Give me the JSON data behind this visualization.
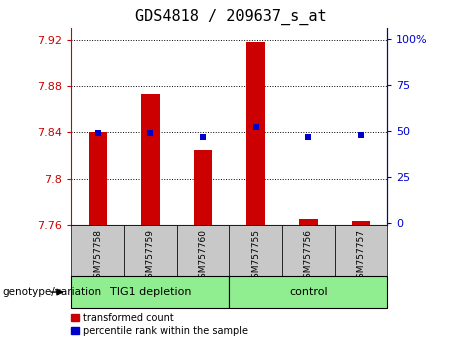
{
  "title": "GDS4818 / 209637_s_at",
  "samples": [
    "GSM757758",
    "GSM757759",
    "GSM757760",
    "GSM757755",
    "GSM757756",
    "GSM757757"
  ],
  "red_values": [
    7.84,
    7.873,
    7.825,
    7.918,
    7.765,
    7.763
  ],
  "blue_values": [
    49,
    49,
    47,
    52,
    47,
    48
  ],
  "baseline": 7.76,
  "ylim_left": [
    7.76,
    7.93
  ],
  "ylim_right": [
    -1,
    106
  ],
  "left_ticks": [
    7.76,
    7.8,
    7.84,
    7.88,
    7.92
  ],
  "right_ticks": [
    0,
    25,
    50,
    75,
    100
  ],
  "right_tick_labels": [
    "0",
    "25",
    "50",
    "75",
    "100%"
  ],
  "groups": [
    {
      "label": "TIG1 depletion",
      "span": [
        0,
        3
      ],
      "color": "#90EE90"
    },
    {
      "label": "control",
      "span": [
        3,
        6
      ],
      "color": "#90EE90"
    }
  ],
  "group_boundary": 3,
  "bar_color": "#CC0000",
  "dot_color": "#0000CC",
  "tick_label_color_left": "#CC0000",
  "tick_label_color_right": "#0000CC",
  "genotype_label": "genotype/variation",
  "legend_red": "transformed count",
  "legend_blue": "percentile rank within the sample",
  "bar_width": 0.35,
  "dot_size": 18,
  "background_plot": "#FFFFFF",
  "background_xtick": "#C8C8C8",
  "title_fontsize": 11,
  "tick_fontsize": 8,
  "sample_fontsize": 6.5,
  "group_fontsize": 8,
  "legend_fontsize": 7,
  "genotype_fontsize": 7.5
}
